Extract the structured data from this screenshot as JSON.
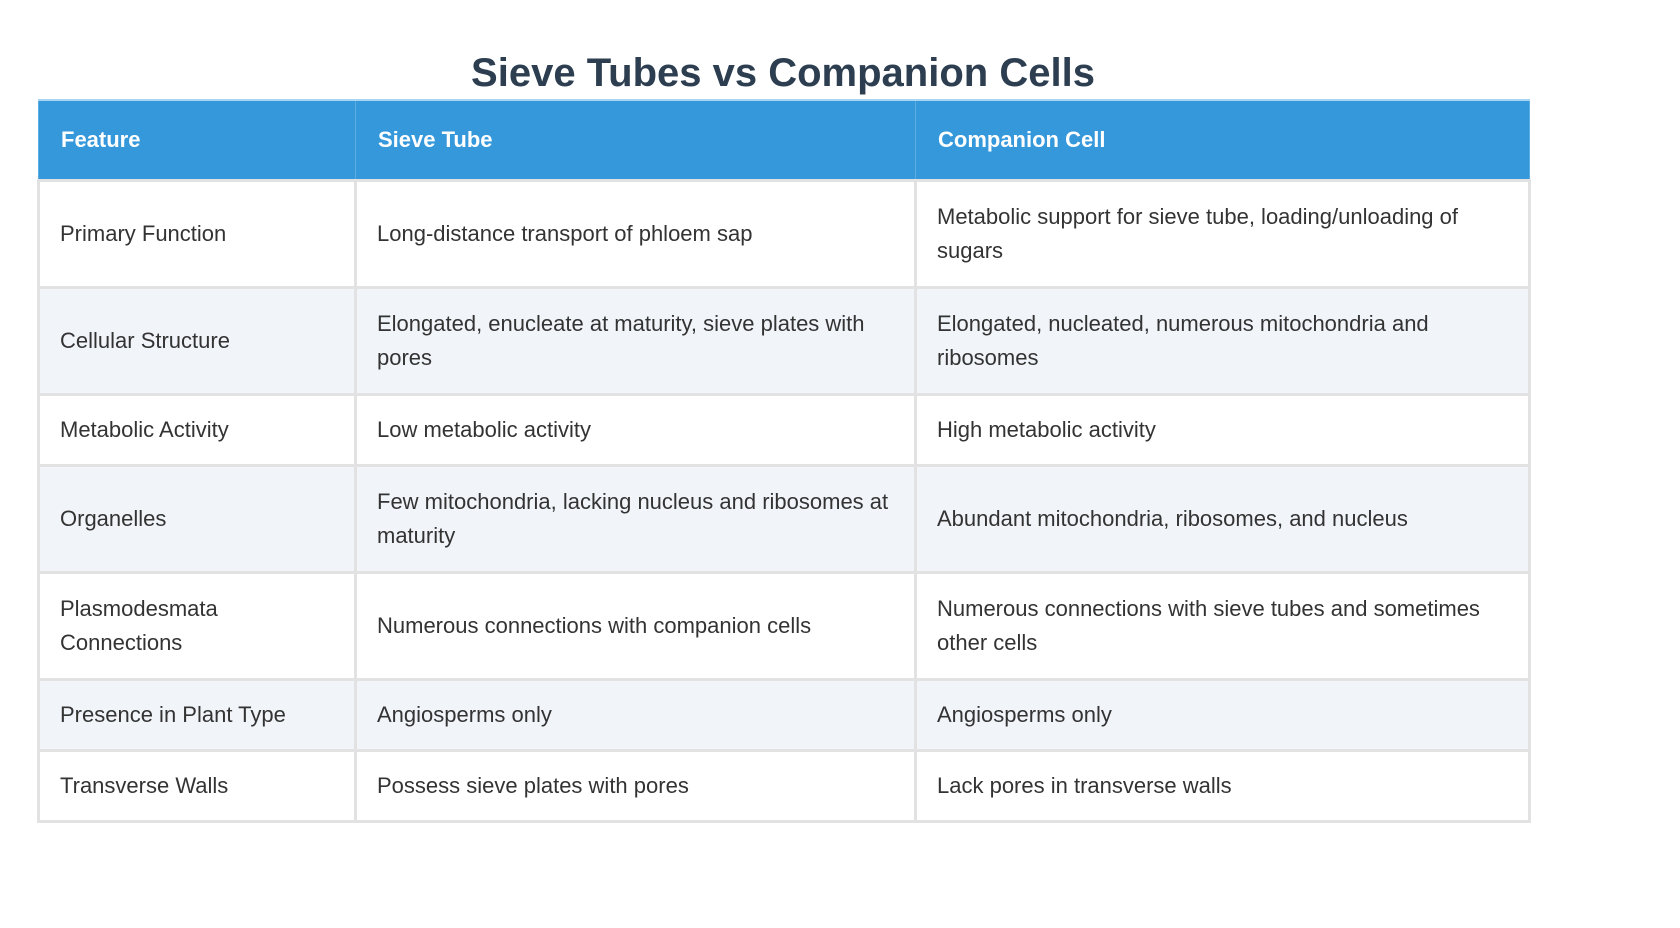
{
  "title": "Sieve Tubes vs Companion Cells",
  "table": {
    "headers": [
      "Feature",
      "Sieve Tube",
      "Companion Cell"
    ],
    "rows": [
      [
        "Primary Function",
        "Long-distance transport of phloem sap",
        "Metabolic support for sieve tube, loading/unloading of sugars"
      ],
      [
        "Cellular Structure",
        "Elongated, enucleate at maturity, sieve plates with pores",
        "Elongated, nucleated, numerous mitochondria and ribosomes"
      ],
      [
        "Metabolic Activity",
        "Low metabolic activity",
        "High metabolic activity"
      ],
      [
        "Organelles",
        "Few mitochondria, lacking nucleus and ribosomes at maturity",
        "Abundant mitochondria, ribosomes, and nucleus"
      ],
      [
        "Plasmodesmata Connections",
        "Numerous connections with companion cells",
        "Numerous connections with sieve tubes and sometimes other cells"
      ],
      [
        "Presence in Plant Type",
        "Angiosperms only",
        "Angiosperms only"
      ],
      [
        "Transverse Walls",
        "Possess sieve plates with pores",
        "Lack pores in transverse walls"
      ]
    ]
  },
  "colors": {
    "title": "#2c3e50",
    "header_bg": "#3498db",
    "header_text": "#ffffff",
    "row_alt_bg": "#f1f4f9",
    "border": "#e2e2e2",
    "cell_text": "#333333"
  }
}
